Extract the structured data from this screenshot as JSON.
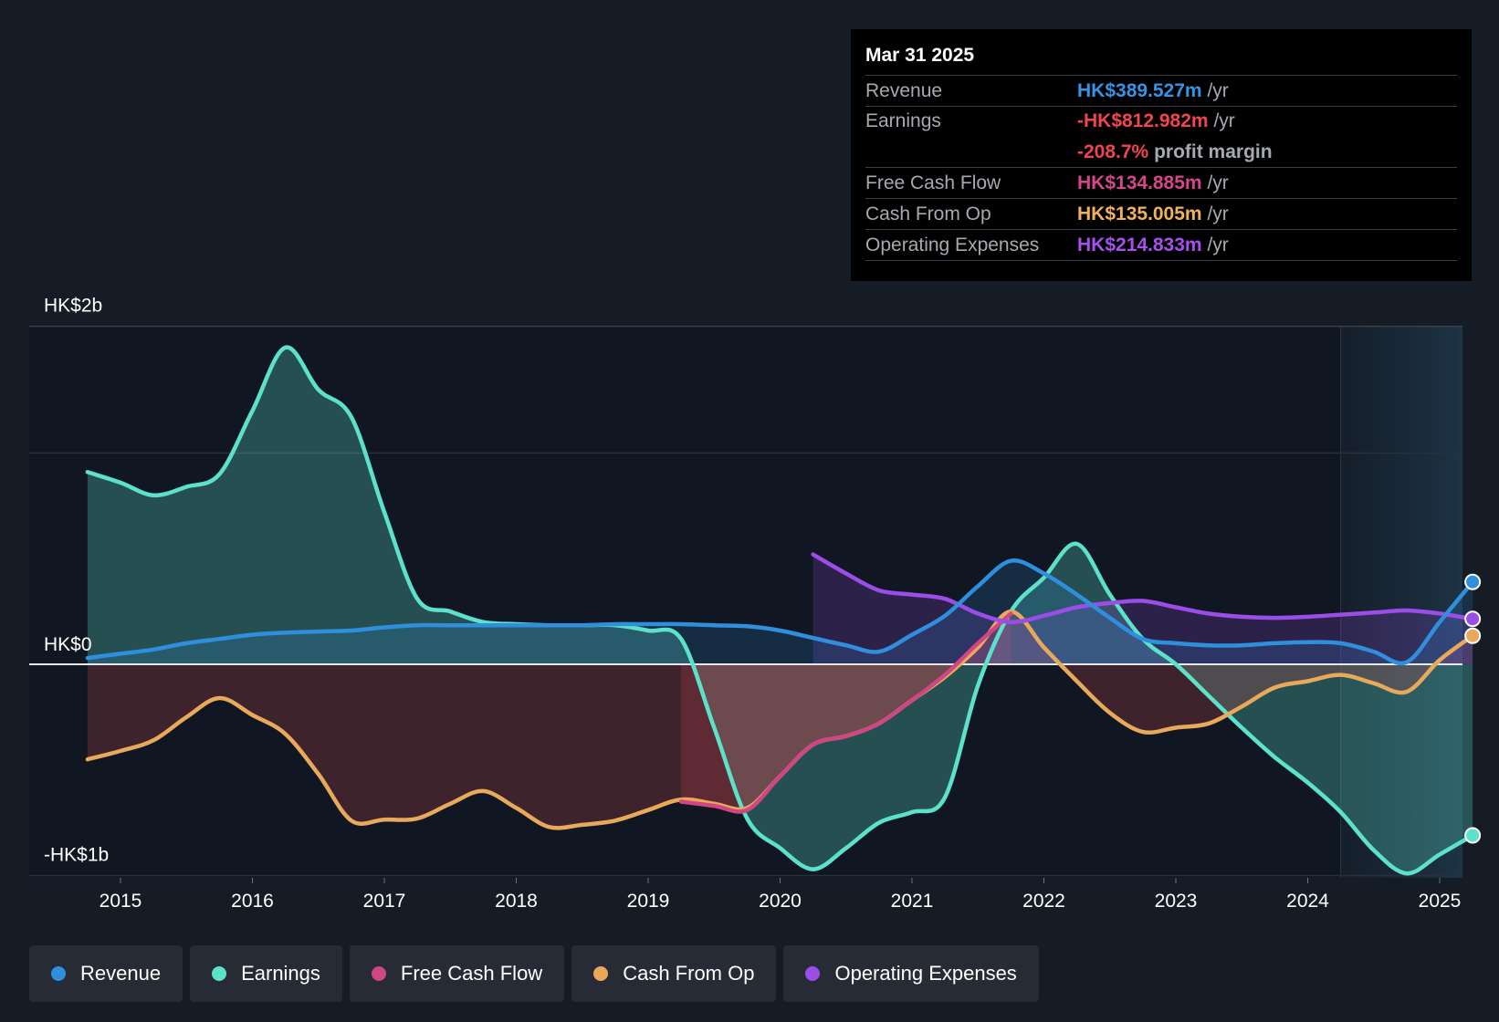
{
  "colors": {
    "revenue": "#2f8fdd",
    "earnings": "#5ce1cb",
    "fcf": "#d04683",
    "cfo": "#e8a95b",
    "opex": "#9b4de8"
  },
  "tooltip": {
    "date": "Mar 31 2025",
    "rows": [
      {
        "label": "Revenue",
        "value": "HK$389.527m",
        "unit": "/yr",
        "color": "#3594e6"
      },
      {
        "label": "Earnings",
        "value": "-HK$812.982m",
        "unit": "/yr",
        "color": "#f0454f",
        "extra_value": "-208.7%",
        "extra_unit": "profit margin"
      },
      {
        "label": "Free Cash Flow",
        "value": "HK$134.885m",
        "unit": "/yr",
        "color": "#d4478a"
      },
      {
        "label": "Cash From Op",
        "value": "HK$135.005m",
        "unit": "/yr",
        "color": "#f0b25f"
      },
      {
        "label": "Operating Expenses",
        "value": "HK$214.833m",
        "unit": "/yr",
        "color": "#a650f0"
      }
    ]
  },
  "legend": [
    {
      "label": "Revenue",
      "color": "#2f8fdd"
    },
    {
      "label": "Earnings",
      "color": "#5ce1cb"
    },
    {
      "label": "Free Cash Flow",
      "color": "#d04683"
    },
    {
      "label": "Cash From Op",
      "color": "#e8a95b"
    },
    {
      "label": "Operating Expenses",
      "color": "#9b4de8"
    }
  ],
  "chart_data": {
    "type": "area",
    "y_unit": "HK$ billions",
    "ylim": [
      -1.0,
      1.6
    ],
    "y_ticks": [
      {
        "value": 1.6,
        "label": "HK$2b"
      },
      {
        "value": 0,
        "label": "HK$0"
      },
      {
        "value": -1.0,
        "label": "-HK$1b"
      }
    ],
    "xlim": [
      2014.7,
      2025.25
    ],
    "x_ticks": [
      {
        "value": 2015,
        "label": "2015"
      },
      {
        "value": 2016,
        "label": "2016"
      },
      {
        "value": 2017,
        "label": "2017"
      },
      {
        "value": 2018,
        "label": "2018"
      },
      {
        "value": 2019,
        "label": "2019"
      },
      {
        "value": 2020,
        "label": "2020"
      },
      {
        "value": 2021,
        "label": "2021"
      },
      {
        "value": 2022,
        "label": "2022"
      },
      {
        "value": 2023,
        "label": "2023"
      },
      {
        "value": 2024,
        "label": "2024"
      },
      {
        "value": 2025,
        "label": "2025"
      }
    ],
    "forecast_start": 2024.25,
    "series": [
      {
        "name": "Revenue",
        "x": [
          2014.75,
          2015.0,
          2015.25,
          2015.5,
          2015.75,
          2016.0,
          2016.25,
          2016.5,
          2016.75,
          2017.0,
          2017.25,
          2017.5,
          2017.75,
          2018.0,
          2018.25,
          2018.5,
          2018.75,
          2019.0,
          2019.25,
          2019.5,
          2019.75,
          2020.0,
          2020.25,
          2020.5,
          2020.75,
          2021.0,
          2021.25,
          2021.5,
          2021.75,
          2022.0,
          2022.25,
          2022.5,
          2022.75,
          2023.0,
          2023.25,
          2023.5,
          2023.75,
          2024.0,
          2024.25,
          2024.5,
          2024.75,
          2025.0,
          2025.25
        ],
        "values": [
          0.03,
          0.05,
          0.07,
          0.1,
          0.12,
          0.14,
          0.15,
          0.155,
          0.16,
          0.175,
          0.185,
          0.185,
          0.185,
          0.185,
          0.185,
          0.185,
          0.19,
          0.19,
          0.19,
          0.185,
          0.18,
          0.16,
          0.125,
          0.09,
          0.06,
          0.14,
          0.23,
          0.37,
          0.49,
          0.43,
          0.33,
          0.22,
          0.12,
          0.1,
          0.09,
          0.09,
          0.1,
          0.105,
          0.1,
          0.06,
          0.01,
          0.2,
          0.39
        ]
      },
      {
        "name": "Earnings",
        "x": [
          2014.75,
          2015.0,
          2015.25,
          2015.5,
          2015.75,
          2016.0,
          2016.25,
          2016.5,
          2016.75,
          2017.0,
          2017.25,
          2017.5,
          2017.75,
          2018.0,
          2018.25,
          2018.5,
          2018.75,
          2019.0,
          2019.25,
          2019.5,
          2019.75,
          2020.0,
          2020.25,
          2020.5,
          2020.75,
          2021.0,
          2021.25,
          2021.5,
          2021.75,
          2022.0,
          2022.25,
          2022.5,
          2022.75,
          2023.0,
          2023.25,
          2023.5,
          2023.75,
          2024.0,
          2024.25,
          2024.5,
          2024.75,
          2025.0,
          2025.25
        ],
        "values": [
          0.91,
          0.86,
          0.8,
          0.84,
          0.9,
          1.2,
          1.5,
          1.3,
          1.17,
          0.72,
          0.31,
          0.25,
          0.2,
          0.19,
          0.185,
          0.185,
          0.185,
          0.16,
          0.12,
          -0.3,
          -0.73,
          -0.87,
          -0.97,
          -0.87,
          -0.75,
          -0.7,
          -0.63,
          -0.1,
          0.25,
          0.41,
          0.57,
          0.33,
          0.12,
          0.0,
          -0.15,
          -0.3,
          -0.44,
          -0.56,
          -0.7,
          -0.88,
          -0.99,
          -0.9,
          -0.81
        ]
      },
      {
        "name": "Free Cash Flow",
        "x": [
          2019.25,
          2019.5,
          2019.75,
          2020.0,
          2020.25,
          2020.5,
          2020.75,
          2021.0,
          2021.25,
          2021.5,
          2021.75
        ],
        "values": [
          -0.65,
          -0.67,
          -0.69,
          -0.53,
          -0.38,
          -0.34,
          -0.28,
          -0.17,
          -0.05,
          0.1,
          0.24
        ]
      },
      {
        "name": "Cash From Op",
        "x": [
          2014.75,
          2015.0,
          2015.25,
          2015.5,
          2015.75,
          2016.0,
          2016.25,
          2016.5,
          2016.75,
          2017.0,
          2017.25,
          2017.5,
          2017.75,
          2018.0,
          2018.25,
          2018.5,
          2018.75,
          2019.0,
          2019.25,
          2019.5,
          2019.75,
          2020.0,
          2020.25,
          2020.5,
          2020.75,
          2021.0,
          2021.25,
          2021.5,
          2021.75,
          2022.0,
          2022.25,
          2022.5,
          2022.75,
          2023.0,
          2023.25,
          2023.5,
          2023.75,
          2024.0,
          2024.25,
          2024.5,
          2024.75,
          2025.0,
          2025.25
        ],
        "values": [
          -0.45,
          -0.41,
          -0.36,
          -0.25,
          -0.16,
          -0.24,
          -0.33,
          -0.52,
          -0.74,
          -0.735,
          -0.73,
          -0.66,
          -0.6,
          -0.68,
          -0.77,
          -0.76,
          -0.74,
          -0.69,
          -0.64,
          -0.66,
          -0.68,
          -0.53,
          -0.38,
          -0.34,
          -0.28,
          -0.17,
          -0.06,
          0.08,
          0.25,
          0.08,
          -0.08,
          -0.23,
          -0.32,
          -0.3,
          -0.28,
          -0.2,
          -0.11,
          -0.08,
          -0.05,
          -0.09,
          -0.13,
          0.02,
          0.135
        ]
      },
      {
        "name": "Operating Expenses",
        "x": [
          2020.25,
          2020.5,
          2020.75,
          2021.0,
          2021.25,
          2021.5,
          2021.75,
          2022.0,
          2022.25,
          2022.5,
          2022.75,
          2023.0,
          2023.25,
          2023.5,
          2023.75,
          2024.0,
          2024.25,
          2024.5,
          2024.75,
          2025.0,
          2025.25
        ],
        "values": [
          0.52,
          0.43,
          0.35,
          0.33,
          0.31,
          0.24,
          0.2,
          0.23,
          0.27,
          0.29,
          0.3,
          0.27,
          0.24,
          0.225,
          0.22,
          0.225,
          0.235,
          0.245,
          0.255,
          0.24,
          0.215
        ]
      }
    ]
  }
}
